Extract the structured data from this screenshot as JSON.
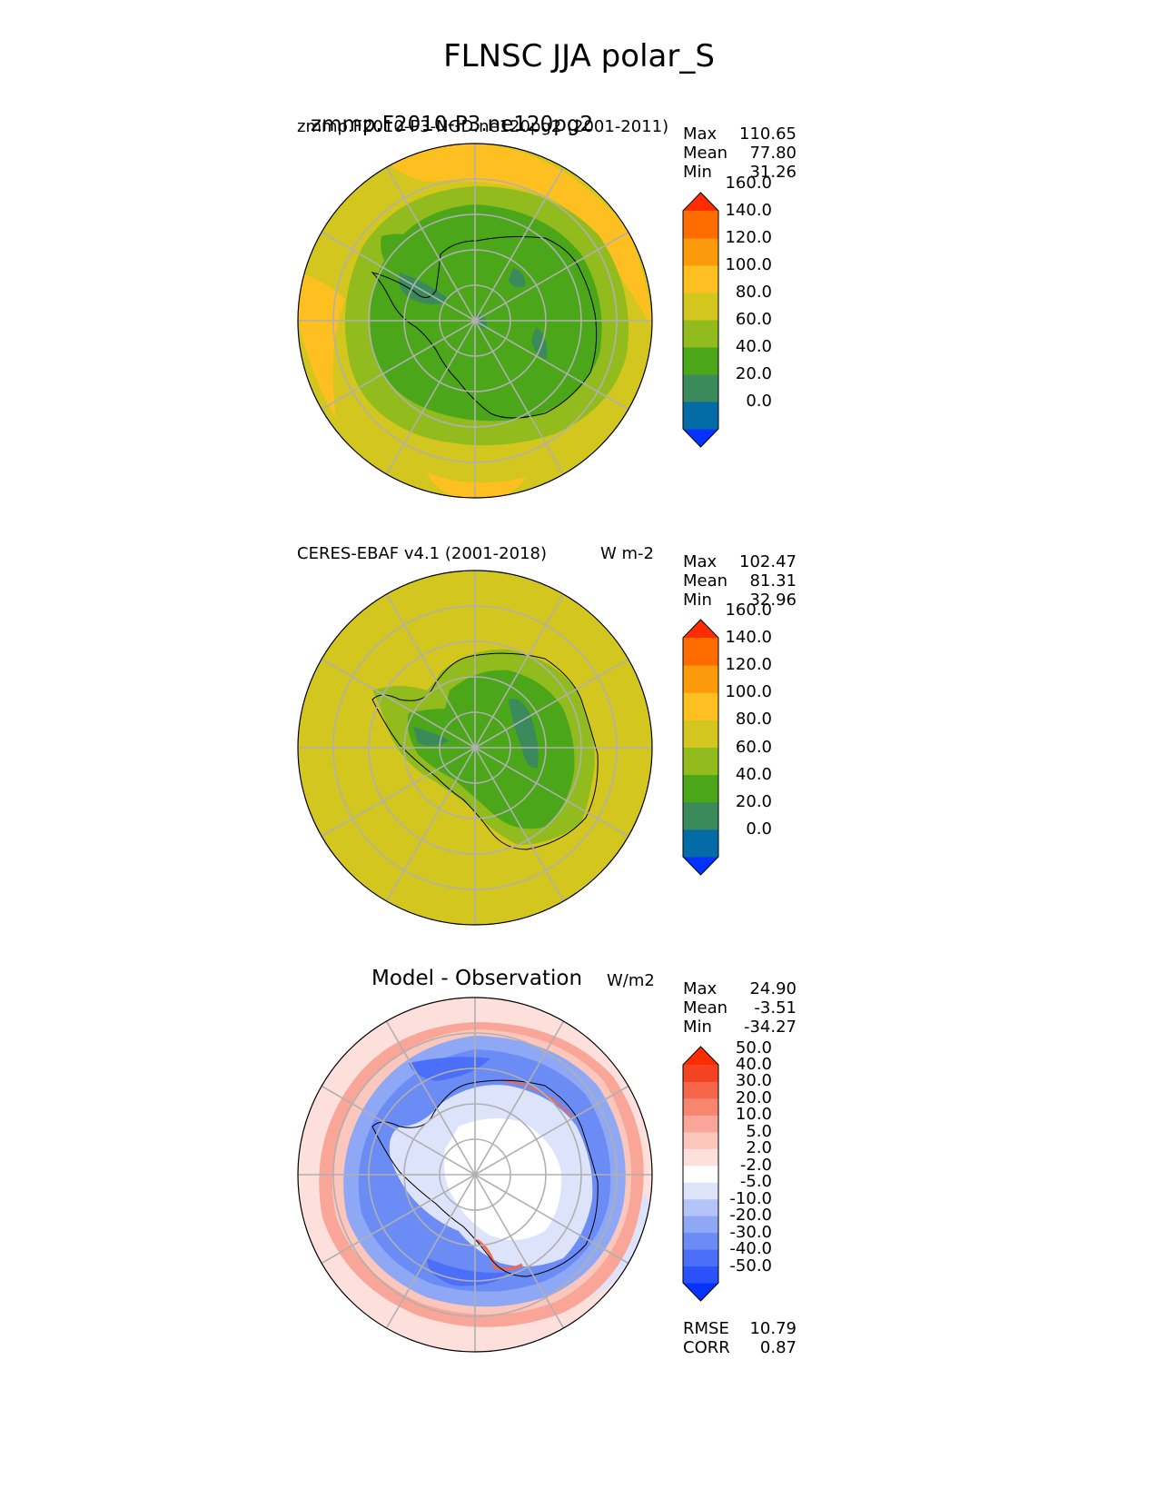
{
  "figure": {
    "title": "FLNSC JJA polar_S"
  },
  "panels": [
    {
      "left_label": "zmmp.F2010-P3-NGD.ne120pg2 (2001-2011)",
      "left_label_overlay": "zmmp.F2010-P3.ne120pg2",
      "unit": "",
      "stats": [
        {
          "key": "Max",
          "value": "110.65"
        },
        {
          "key": "Mean",
          "value": "77.80"
        },
        {
          "key": "Min",
          "value": "31.26"
        }
      ],
      "colorbar": {
        "tick_labels": [
          "160.0",
          "140.0",
          "120.0",
          "100.0",
          "80.0",
          "60.0",
          "40.0",
          "20.0",
          "0.0"
        ],
        "colors": [
          "#0433ff",
          "#036ba6",
          "#3a8a5c",
          "#4ba619",
          "#92bb1d",
          "#d3c61f",
          "#fec020",
          "#fd9a0c",
          "#fe6c00",
          "#fe2d00"
        ]
      }
    },
    {
      "left_label": "CERES-EBAF v4.1 (2001-2018)",
      "unit": "W m-2",
      "stats": [
        {
          "key": "Max",
          "value": "102.47"
        },
        {
          "key": "Mean",
          "value": "81.31"
        },
        {
          "key": "Min",
          "value": "32.96"
        }
      ],
      "colorbar": {
        "tick_labels": [
          "160.0",
          "140.0",
          "120.0",
          "100.0",
          "80.0",
          "60.0",
          "40.0",
          "20.0",
          "0.0"
        ],
        "colors": [
          "#0433ff",
          "#036ba6",
          "#3a8a5c",
          "#4ba619",
          "#92bb1d",
          "#d3c61f",
          "#fec020",
          "#fd9a0c",
          "#fe6c00",
          "#fe2d00"
        ]
      }
    },
    {
      "title": "Model - Observation",
      "unit": "W/m2",
      "stats": [
        {
          "key": "Max",
          "value": "24.90"
        },
        {
          "key": "Mean",
          "value": "-3.51"
        },
        {
          "key": "Min",
          "value": "-34.27"
        }
      ],
      "metrics": [
        {
          "key": "RMSE",
          "value": "10.79"
        },
        {
          "key": "CORR",
          "value": "0.87"
        }
      ],
      "colorbar": {
        "tick_labels": [
          "50.0",
          "40.0",
          "30.0",
          "20.0",
          "10.0",
          "5.0",
          "2.0",
          "-2.0",
          "-5.0",
          "-10.0",
          "-20.0",
          "-30.0",
          "-40.0",
          "-50.0"
        ],
        "colors": [
          "#0433ff",
          "#2a52fb",
          "#4b6ff8",
          "#6b8cf5",
          "#8ea8f5",
          "#b4c4f8",
          "#dde3fb",
          "#ffffff",
          "#fde0dc",
          "#fbc6bc",
          "#f9a597",
          "#f7866f",
          "#f6664a",
          "#f44323",
          "#fe2d00"
        ]
      }
    }
  ],
  "chart_data": [
    {
      "type": "heatmap",
      "projection": "south polar stereographic",
      "variable": "FLNSC",
      "season": "JJA",
      "label": "zmmp.F2010-P3-NGD.ne120pg2 (2001-2011)",
      "stats": {
        "max": 110.65,
        "mean": 77.8,
        "min": 31.26
      },
      "colorbar_levels": [
        0,
        20,
        40,
        60,
        80,
        100,
        120,
        140,
        160
      ],
      "extend": "both",
      "grid": true
    },
    {
      "type": "heatmap",
      "projection": "south polar stereographic",
      "variable": "FLNSC",
      "season": "JJA",
      "label": "CERES-EBAF v4.1 (2001-2018)",
      "unit": "W m-2",
      "stats": {
        "max": 102.47,
        "mean": 81.31,
        "min": 32.96
      },
      "colorbar_levels": [
        0,
        20,
        40,
        60,
        80,
        100,
        120,
        140,
        160
      ],
      "extend": "both",
      "grid": true
    },
    {
      "type": "heatmap",
      "projection": "south polar stereographic",
      "title": "Model - Observation",
      "unit": "W/m2",
      "stats": {
        "max": 24.9,
        "mean": -3.51,
        "min": -34.27
      },
      "rmse": 10.79,
      "corr": 0.87,
      "colorbar_levels": [
        -50,
        -40,
        -30,
        -20,
        -10,
        -5,
        -2,
        2,
        5,
        10,
        20,
        30,
        40,
        50
      ],
      "extend": "both",
      "grid": true
    }
  ]
}
